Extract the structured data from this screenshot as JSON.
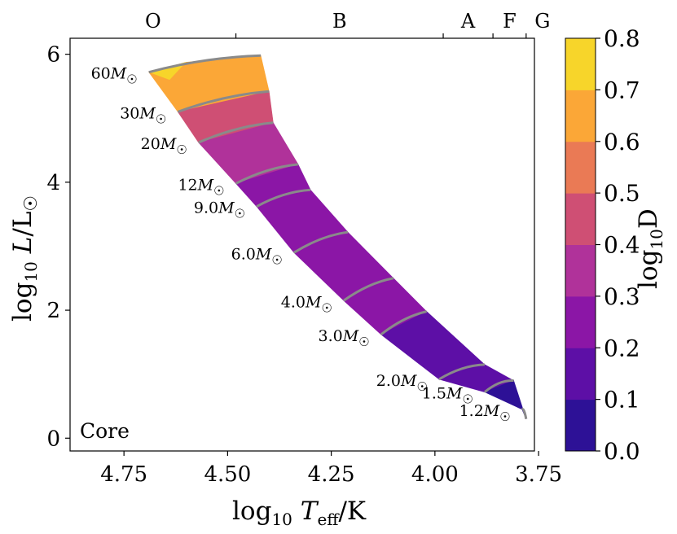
{
  "chart_data": {
    "type": "heatmap",
    "title": "",
    "xlabel": "log10 Teff/K",
    "ylabel": "log10 L/L☉",
    "xlim": [
      4.88,
      3.76
    ],
    "ylim": [
      -0.2,
      6.25
    ],
    "x_ticks": [
      "4.75",
      "4.50",
      "4.25",
      "4.00",
      "3.75"
    ],
    "x_tick_values": [
      4.75,
      4.5,
      4.25,
      4.0,
      3.75
    ],
    "y_ticks": [
      "0",
      "2",
      "4",
      "6"
    ],
    "y_tick_values": [
      0,
      2,
      4,
      6
    ],
    "top_axis": {
      "spectral_types": [
        "O",
        "B",
        "A",
        "F",
        "G"
      ],
      "class_boundaries": [
        4.48,
        3.98,
        3.86,
        3.78
      ]
    },
    "annotation": "Core",
    "colorbar": {
      "label": "log10D",
      "ticks": [
        "0.0",
        "0.1",
        "0.2",
        "0.3",
        "0.4",
        "0.5",
        "0.6",
        "0.7",
        "0.8"
      ],
      "levels": [
        0.0,
        0.1,
        0.2,
        0.3,
        0.4,
        0.5,
        0.6,
        0.7,
        0.8
      ],
      "colors": [
        "#2d1196",
        "#5d0fa6",
        "#8b16a6",
        "#b0329a",
        "#cf4f74",
        "#ea7a55",
        "#fba737",
        "#f7d52a"
      ]
    },
    "tracks": [
      {
        "label": "60M☉",
        "zams": [
          4.69,
          5.72
        ],
        "tams": [
          4.42,
          5.98
        ]
      },
      {
        "label": "30M☉",
        "zams": [
          4.62,
          5.1
        ],
        "tams": [
          4.4,
          5.42
        ]
      },
      {
        "label": "20M☉",
        "zams": [
          4.57,
          4.62
        ],
        "tams": [
          4.39,
          4.93
        ]
      },
      {
        "label": "12M☉",
        "zams": [
          4.48,
          3.98
        ],
        "tams": [
          4.33,
          4.28
        ]
      },
      {
        "label": "9.0M☉",
        "zams": [
          4.43,
          3.62
        ],
        "tams": [
          4.3,
          3.88
        ]
      },
      {
        "label": "6.0M☉",
        "zams": [
          4.34,
          2.9
        ],
        "tams": [
          4.21,
          3.22
        ]
      },
      {
        "label": "4.0M☉",
        "zams": [
          4.22,
          2.15
        ],
        "tams": [
          4.1,
          2.5
        ]
      },
      {
        "label": "3.0M☉",
        "zams": [
          4.13,
          1.62
        ],
        "tams": [
          4.02,
          1.98
        ]
      },
      {
        "label": "2.0M☉",
        "zams": [
          3.99,
          0.92
        ],
        "tams": [
          3.88,
          1.15
        ]
      },
      {
        "label": "1.5M☉",
        "zams": [
          3.88,
          0.72
        ],
        "tams": [
          3.81,
          0.9
        ]
      },
      {
        "label": "1.2M☉",
        "zams": [
          3.79,
          0.45
        ],
        "tams": [
          3.78,
          0.3
        ]
      }
    ],
    "band_segments": [
      {
        "from": "60M☉",
        "to": "30M☉",
        "log10D": 0.65
      },
      {
        "from": "30M☉",
        "to": "20M☉",
        "log10D": 0.45
      },
      {
        "from": "20M☉",
        "to": "12M☉",
        "log10D": 0.35
      },
      {
        "from": "12M☉",
        "to": "9.0M☉",
        "log10D": 0.25
      },
      {
        "from": "9.0M☉",
        "to": "6.0M☉",
        "log10D": 0.25
      },
      {
        "from": "6.0M☉",
        "to": "4.0M☉",
        "log10D": 0.25
      },
      {
        "from": "4.0M☉",
        "to": "3.0M☉",
        "log10D": 0.25
      },
      {
        "from": "3.0M☉",
        "to": "2.0M☉",
        "log10D": 0.15
      },
      {
        "from": "2.0M☉",
        "to": "1.5M☉",
        "log10D": 0.15
      },
      {
        "from": "1.5M☉",
        "to": "1.2M☉",
        "log10D": 0.05
      }
    ]
  }
}
